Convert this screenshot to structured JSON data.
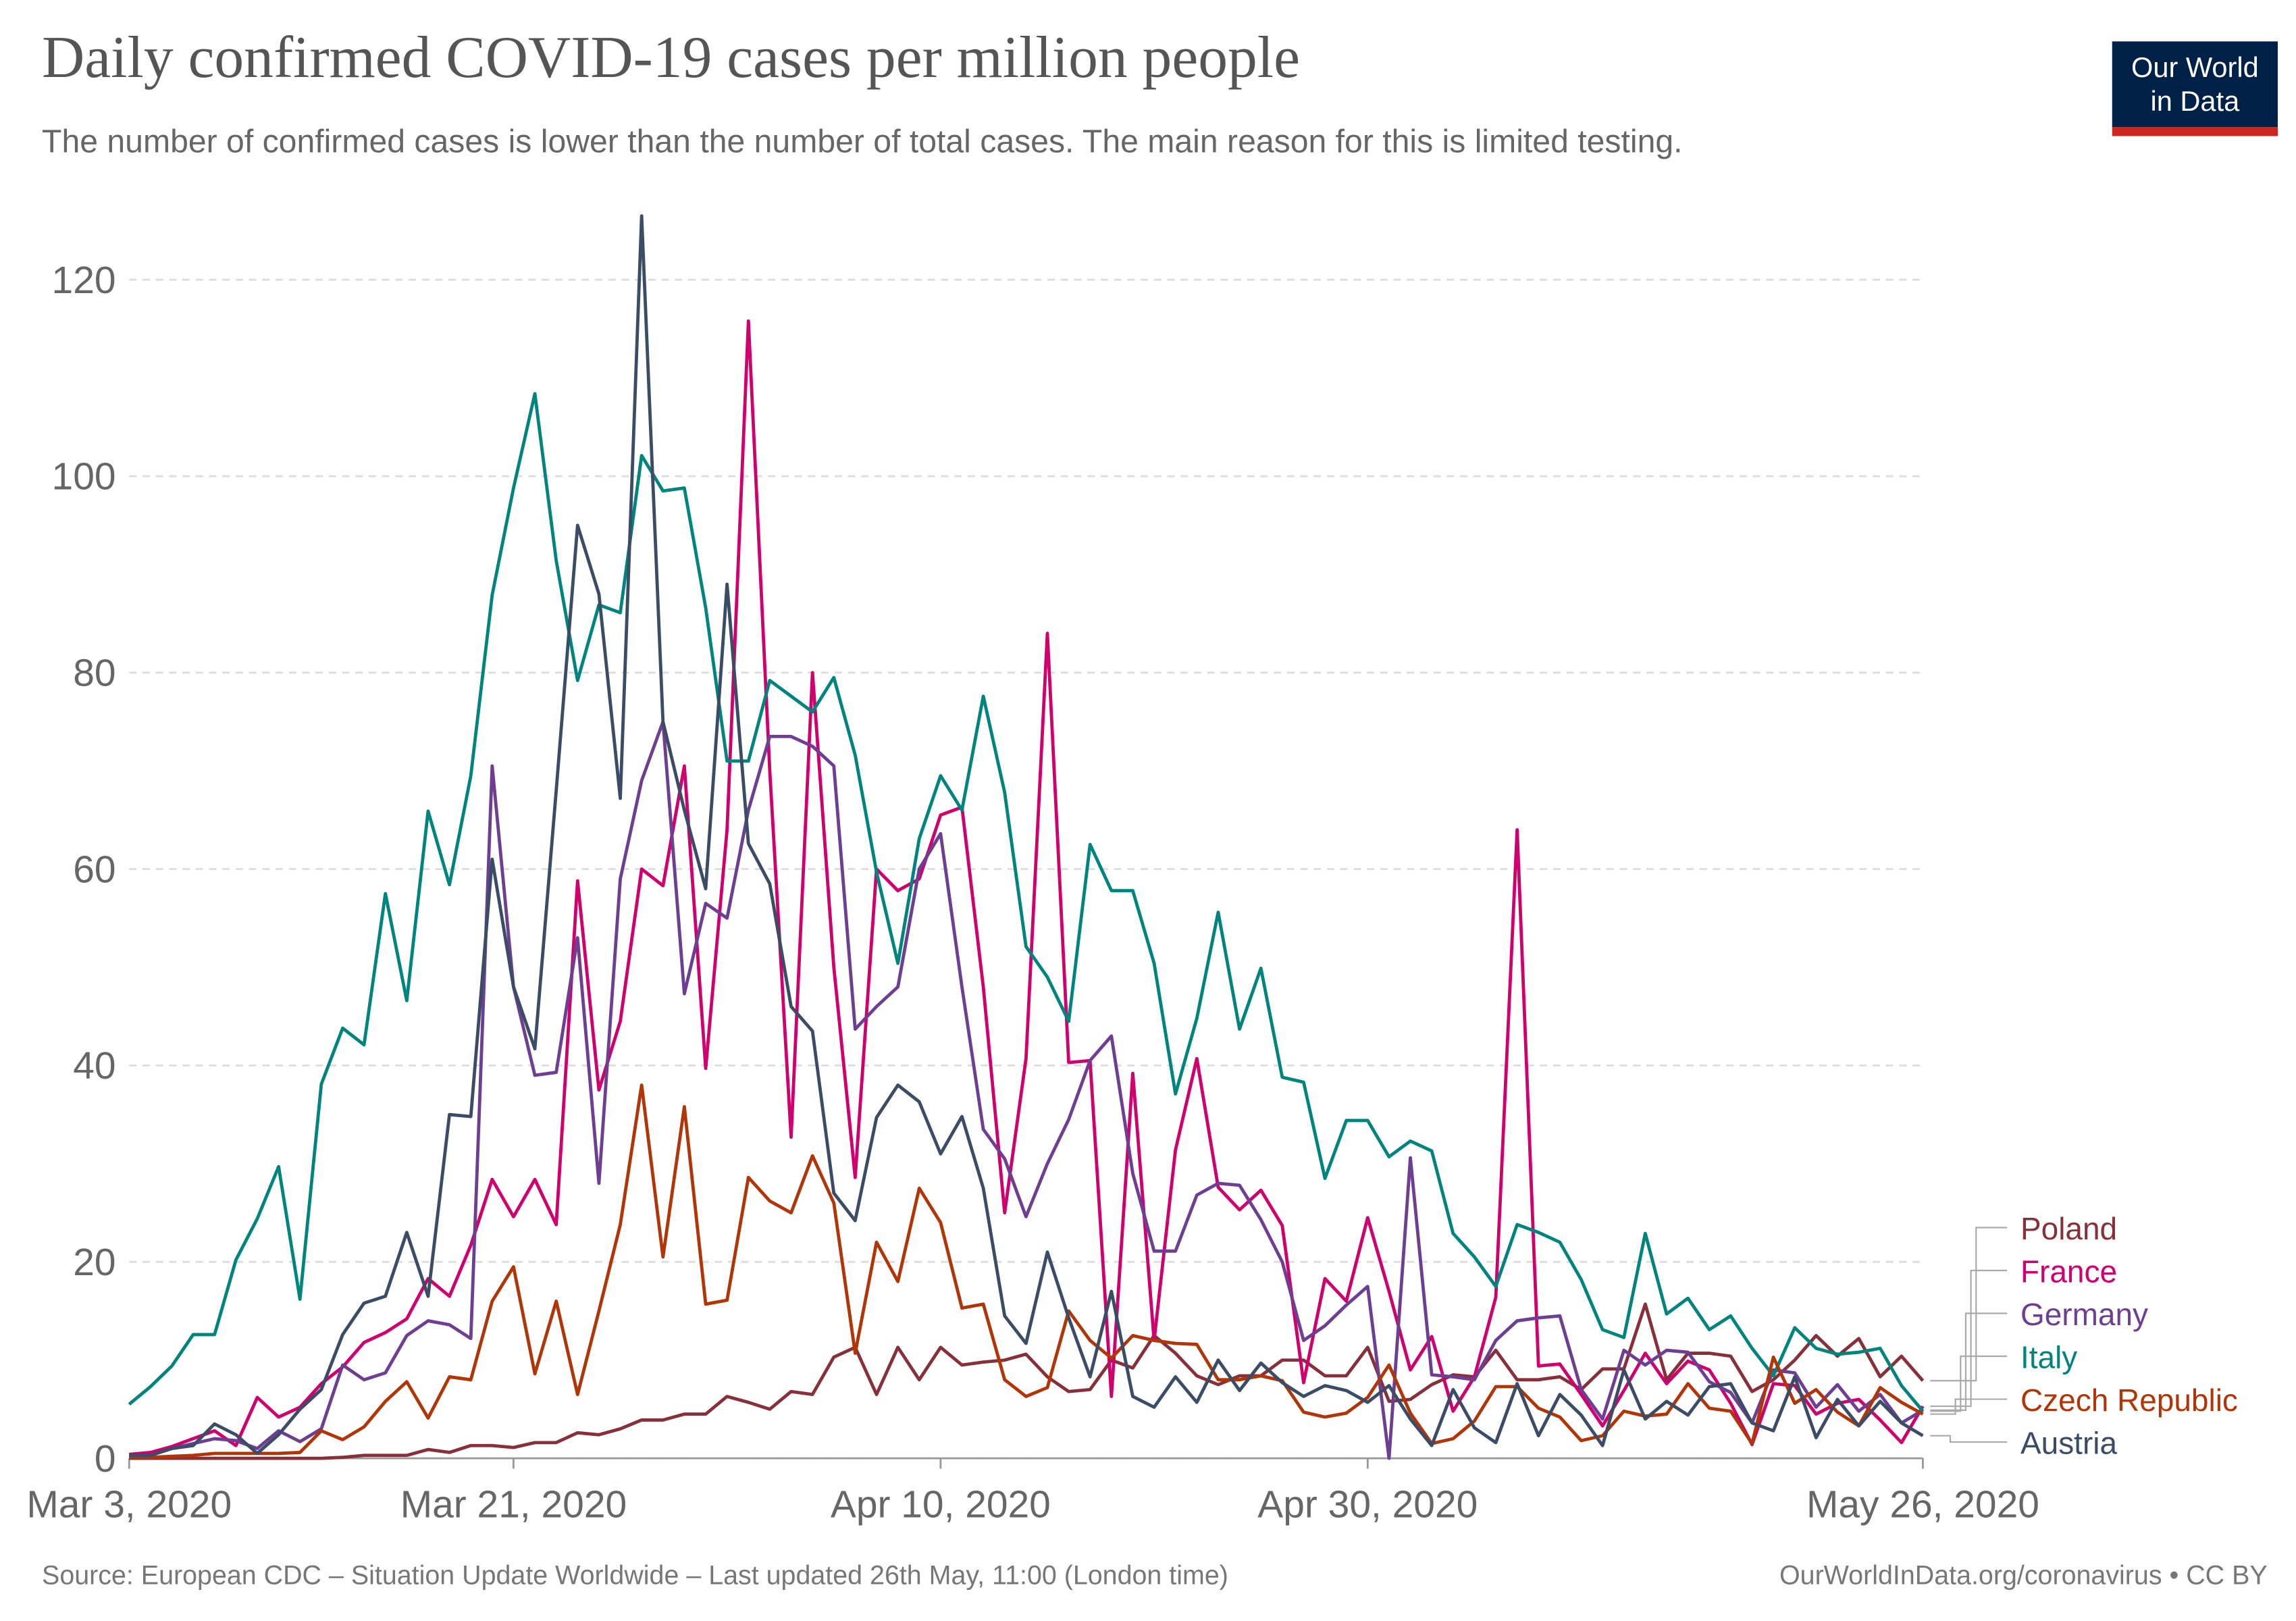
{
  "chart_data": {
    "type": "line",
    "title": "Daily confirmed COVID-19 cases per million people",
    "subtitle": "The number of confirmed cases is lower than the number of total cases. The main reason for this is limited testing.",
    "source": "Source: European CDC – Situation Update Worldwide – Last updated 26th May, 11:00 (London time)",
    "credit": "OurWorldInData.org/coronavirus • CC BY",
    "logo": [
      "Our World",
      "in Data"
    ],
    "x": [
      "2020-03-03",
      "2020-03-04",
      "2020-03-05",
      "2020-03-06",
      "2020-03-07",
      "2020-03-08",
      "2020-03-09",
      "2020-03-10",
      "2020-03-11",
      "2020-03-12",
      "2020-03-13",
      "2020-03-14",
      "2020-03-15",
      "2020-03-16",
      "2020-03-17",
      "2020-03-18",
      "2020-03-19",
      "2020-03-20",
      "2020-03-21",
      "2020-03-22",
      "2020-03-23",
      "2020-03-24",
      "2020-03-25",
      "2020-03-26",
      "2020-03-27",
      "2020-03-28",
      "2020-03-29",
      "2020-03-30",
      "2020-03-31",
      "2020-04-01",
      "2020-04-02",
      "2020-04-03",
      "2020-04-04",
      "2020-04-05",
      "2020-04-06",
      "2020-04-07",
      "2020-04-08",
      "2020-04-09",
      "2020-04-10",
      "2020-04-11",
      "2020-04-12",
      "2020-04-13",
      "2020-04-14",
      "2020-04-15",
      "2020-04-16",
      "2020-04-17",
      "2020-04-18",
      "2020-04-19",
      "2020-04-20",
      "2020-04-21",
      "2020-04-22",
      "2020-04-23",
      "2020-04-24",
      "2020-04-25",
      "2020-04-26",
      "2020-04-27",
      "2020-04-28",
      "2020-04-29",
      "2020-04-30",
      "2020-05-01",
      "2020-05-02",
      "2020-05-03",
      "2020-05-04",
      "2020-05-05",
      "2020-05-06",
      "2020-05-07",
      "2020-05-08",
      "2020-05-09",
      "2020-05-10",
      "2020-05-11",
      "2020-05-12",
      "2020-05-13",
      "2020-05-14",
      "2020-05-15",
      "2020-05-16",
      "2020-05-17",
      "2020-05-18",
      "2020-05-19",
      "2020-05-20",
      "2020-05-21",
      "2020-05-22",
      "2020-05-23",
      "2020-05-24",
      "2020-05-25",
      "2020-05-26"
    ],
    "xlim": [
      "2020-03-03",
      "2020-05-26"
    ],
    "xticks": [
      {
        "value": "2020-03-03",
        "label": "Mar 3, 2020"
      },
      {
        "value": "2020-03-21",
        "label": "Mar 21, 2020"
      },
      {
        "value": "2020-04-10",
        "label": "Apr 10, 2020"
      },
      {
        "value": "2020-04-30",
        "label": "Apr 30, 2020"
      },
      {
        "value": "2020-05-26",
        "label": "May 26, 2020"
      }
    ],
    "ylim": [
      0,
      126.5
    ],
    "yticks": [
      0,
      20,
      40,
      60,
      80,
      100,
      120
    ],
    "grid": true,
    "series": [
      {
        "name": "Poland",
        "color": "#883039",
        "values": [
          0,
          0,
          0,
          0,
          0,
          0,
          0,
          0,
          0,
          0,
          0.1,
          0.3,
          0.3,
          0.3,
          0.9,
          0.6,
          1.3,
          1.3,
          1.1,
          1.6,
          1.6,
          2.6,
          2.4,
          3,
          3.9,
          3.9,
          4.5,
          4.5,
          6.3,
          5.7,
          5,
          6.8,
          6.5,
          10.3,
          11.3,
          6.5,
          11.3,
          8,
          11.3,
          9.5,
          9.8,
          10,
          10.6,
          8.3,
          6.8,
          7,
          10,
          9.2,
          12.5,
          10.7,
          8.4,
          7.5,
          8.4,
          8.4,
          10,
          10,
          8.4,
          8.4,
          11.3,
          5.8,
          6,
          7.5,
          8.5,
          8.3,
          11,
          8,
          8,
          8.3,
          7,
          9.1,
          9.1,
          15.7,
          8,
          10.7,
          10.7,
          10.4,
          6.8,
          8,
          10,
          12.5,
          10.4,
          12.2,
          8.3,
          10.4,
          7.9
        ]
      },
      {
        "name": "France",
        "color": "#d0006f",
        "values": [
          0.4,
          0.6,
          1.2,
          2,
          2.8,
          1.3,
          6.2,
          4.2,
          5.2,
          7.6,
          9.3,
          11.8,
          12.8,
          14.2,
          18.3,
          16.5,
          21.7,
          28.4,
          24.6,
          28.4,
          23.8,
          58.8,
          37.5,
          44.5,
          60,
          58.3,
          70.5,
          39.7,
          64,
          115.8,
          70,
          32.7,
          80,
          50,
          28.6,
          60,
          57.8,
          59,
          65.5,
          66.3,
          48,
          25,
          40.7,
          84,
          40.3,
          40.5,
          6.3,
          39.2,
          12,
          31.4,
          40.7,
          27.6,
          25.3,
          27.3,
          23.7,
          7.7,
          18.3,
          16,
          24.5,
          17,
          9,
          12.4,
          4.8,
          8.3,
          16.4,
          64,
          9.4,
          9.6,
          6.5,
          3.3,
          6.9,
          10.7,
          7.6,
          9.9,
          9,
          5.6,
          1.4,
          7.6,
          7.4,
          4.5,
          5.6,
          6,
          3.9,
          1.6,
          5.3
        ]
      },
      {
        "name": "Germany",
        "color": "#6d3e91",
        "values": [
          0.2,
          0.3,
          1,
          1.5,
          2,
          1.8,
          1,
          2.8,
          1.7,
          3,
          9.5,
          8,
          8.7,
          12.5,
          14,
          13.6,
          12.2,
          70.5,
          48,
          39,
          39.3,
          53,
          28,
          59,
          69,
          75,
          47.3,
          56.5,
          55,
          66,
          73.5,
          73.5,
          72.5,
          70.5,
          43.7,
          46,
          48,
          60,
          63.6,
          48,
          33.5,
          30.5,
          24.6,
          30,
          34.5,
          40.5,
          43,
          29,
          21.1,
          21.1,
          26.8,
          28,
          27.8,
          24.3,
          20,
          12,
          13.5,
          15.6,
          17.5,
          0,
          30.6,
          8.5,
          8.3,
          8,
          12,
          14,
          14.3,
          14.5,
          7,
          4,
          11,
          9.5,
          11,
          10.8,
          7.8,
          6.7,
          3.6,
          9,
          8.7,
          5.2,
          7.5,
          4.8,
          6.5,
          3.6,
          4.9
        ]
      },
      {
        "name": "Italy",
        "color": "#00847e",
        "values": [
          5.5,
          7.3,
          9.4,
          12.6,
          12.6,
          20.2,
          24.4,
          29.7,
          16.2,
          38.1,
          43.8,
          42.1,
          57.5,
          46.6,
          65.9,
          58.4,
          69.5,
          87.9,
          98.8,
          108.4,
          91.4,
          79.2,
          86.9,
          86.1,
          102.1,
          98.5,
          98.8,
          86.6,
          71,
          71,
          79.2,
          77.6,
          76,
          79.5,
          71.6,
          59.7,
          50.4,
          63.1,
          69.5,
          66,
          77.6,
          67.8,
          52.1,
          49,
          44.5,
          62.5,
          57.8,
          57.8,
          50.4,
          37.1,
          44.8,
          55.6,
          43.7,
          49.9,
          38.8,
          38.3,
          28.5,
          34.4,
          34.4,
          30.7,
          32.3,
          31.3,
          22.9,
          20.5,
          17.5,
          23.8,
          23,
          22,
          18.2,
          13.1,
          12.3,
          22.9,
          14.7,
          16.3,
          13.1,
          14.5,
          11.2,
          8.4,
          13.3,
          11.2,
          10.6,
          10.8,
          11.2,
          7.4,
          4.8
        ]
      },
      {
        "name": "Czech Republic",
        "color": "#b13507",
        "values": [
          0.1,
          0.1,
          0.2,
          0.3,
          0.5,
          0.5,
          0.5,
          0.5,
          0.6,
          2.8,
          1.9,
          3.2,
          5.8,
          7.8,
          4.1,
          8.3,
          8,
          16,
          19.5,
          8.6,
          16,
          6.5,
          15,
          23.8,
          38,
          20.5,
          35.8,
          15.7,
          16.1,
          28.6,
          26.2,
          25,
          30.8,
          26,
          10.7,
          22,
          18,
          27.5,
          24,
          15.3,
          15.7,
          8,
          6.3,
          7.2,
          15,
          12,
          10.2,
          12.5,
          12,
          11.7,
          11.6,
          8,
          8,
          8.4,
          7.9,
          4.7,
          4.2,
          4.6,
          6.2,
          9.5,
          4.6,
          1.5,
          2,
          3.8,
          7.3,
          7.3,
          5.1,
          4.2,
          1.8,
          2.3,
          4.8,
          4.3,
          4.5,
          7.6,
          5.1,
          4.8,
          1.5,
          10.3,
          5.6,
          7,
          4.7,
          3.3,
          7.2,
          5.7,
          4.5
        ]
      },
      {
        "name": "Austria",
        "color": "#3b4c66",
        "values": [
          0.3,
          0.3,
          1,
          1.3,
          3.5,
          2.4,
          0.5,
          2.4,
          5,
          7,
          12.6,
          15.8,
          16.5,
          23,
          16.5,
          35,
          34.8,
          61,
          48,
          41.7,
          68,
          95,
          88,
          67.2,
          126.5,
          75,
          66,
          58,
          89,
          62.6,
          58.5,
          46,
          43.5,
          27,
          24.2,
          34.7,
          38,
          36.3,
          31,
          34.8,
          27.5,
          14.5,
          11.7,
          21,
          14.3,
          8.3,
          17,
          6.3,
          5.2,
          8.3,
          5.7,
          10,
          6.9,
          9.7,
          7.7,
          6.3,
          7.4,
          6.9,
          5.7,
          7.4,
          4,
          1.3,
          7,
          3.1,
          1.6,
          7.6,
          2.3,
          6.5,
          4.4,
          1.3,
          9,
          4,
          5.8,
          4.4,
          7.3,
          7.6,
          3.6,
          2.8,
          8.3,
          2.1,
          6,
          3.3,
          5.8,
          3.6,
          2.3
        ]
      }
    ]
  }
}
